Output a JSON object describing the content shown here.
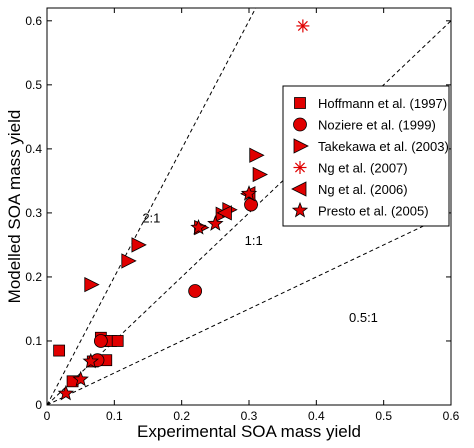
{
  "chart_data": {
    "type": "scatter",
    "title": "",
    "xlabel": "Experimental SOA mass yield",
    "ylabel": "Modelled SOA mass yield",
    "xlim": [
      0,
      0.6
    ],
    "ylim": [
      0,
      0.62
    ],
    "x_ticks": [
      "0",
      "0.1",
      "0.2",
      "0.3",
      "0.4",
      "0.5",
      "0.6"
    ],
    "y_ticks": [
      "0",
      "0.1",
      "0.2",
      "0.3",
      "0.4",
      "0.5",
      "0.6"
    ],
    "x_tick_values": [
      0,
      0.1,
      0.2,
      0.3,
      0.4,
      0.5,
      0.6
    ],
    "y_tick_values": [
      0,
      0.1,
      0.2,
      0.3,
      0.4,
      0.5,
      0.6
    ],
    "grid": false,
    "legend_position": "right",
    "marker_color": "#e00000",
    "reference_lines": [
      {
        "label": "2:1",
        "slope": 2,
        "label_x": 0.155,
        "label_y": 0.285
      },
      {
        "label": "1:1",
        "slope": 1,
        "label_x": 0.307,
        "label_y": 0.25
      },
      {
        "label": "0.5:1",
        "slope": 0.5,
        "label_x": 0.47,
        "label_y": 0.13
      }
    ],
    "series": [
      {
        "name": "Hoffmann et al. (1997)",
        "marker": "square",
        "points": [
          [
            0.018,
            0.085
          ],
          [
            0.038,
            0.037
          ],
          [
            0.08,
            0.105
          ],
          [
            0.085,
            0.1
          ],
          [
            0.095,
            0.1
          ],
          [
            0.105,
            0.1
          ],
          [
            0.088,
            0.07
          ],
          [
            0.068,
            0.068
          ]
        ]
      },
      {
        "name": "Noziere et al. (1999)",
        "marker": "circle",
        "points": [
          [
            0.075,
            0.07
          ],
          [
            0.08,
            0.1
          ],
          [
            0.22,
            0.178
          ],
          [
            0.303,
            0.313
          ]
        ]
      },
      {
        "name": "Takekawa et al. (2003)",
        "marker": "triangle-right",
        "points": [
          [
            0.065,
            0.188
          ],
          [
            0.12,
            0.225
          ],
          [
            0.135,
            0.25
          ],
          [
            0.228,
            0.277
          ],
          [
            0.26,
            0.298
          ],
          [
            0.27,
            0.305
          ],
          [
            0.31,
            0.39
          ],
          [
            0.315,
            0.36
          ]
        ]
      },
      {
        "name": "Ng et al. (2007)",
        "marker": "asterisk",
        "points": [
          [
            0.38,
            0.592
          ]
        ]
      },
      {
        "name": "Ng et al. (2006)",
        "marker": "triangle-left",
        "points": [
          [
            0.265,
            0.3
          ],
          [
            0.3,
            0.33
          ]
        ]
      },
      {
        "name": "Presto et al. (2005)",
        "marker": "star",
        "points": [
          [
            0.028,
            0.018
          ],
          [
            0.05,
            0.04
          ],
          [
            0.065,
            0.068
          ],
          [
            0.225,
            0.277
          ],
          [
            0.25,
            0.283
          ],
          [
            0.3,
            0.33
          ]
        ]
      }
    ]
  }
}
